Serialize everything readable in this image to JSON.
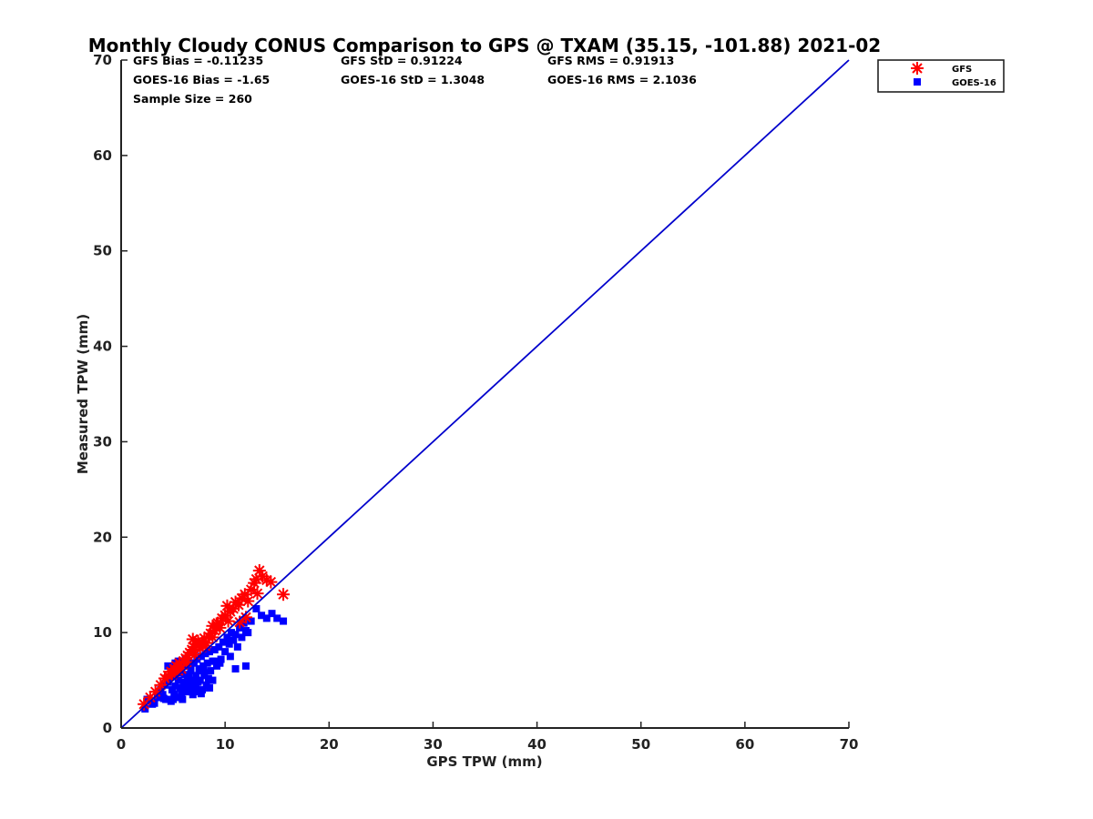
{
  "chart_data": {
    "type": "scatter",
    "title": "Monthly Cloudy CONUS Comparison to GPS @ TXAM (35.15, -101.88) 2021-02",
    "xlabel": "GPS TPW (mm)",
    "ylabel": "Measured TPW (mm)",
    "xlim": [
      0,
      70
    ],
    "ylim": [
      0,
      70
    ],
    "xticks": [
      "0",
      "10",
      "20",
      "30",
      "40",
      "50",
      "60",
      "70"
    ],
    "yticks": [
      "0",
      "10",
      "20",
      "30",
      "40",
      "50",
      "60",
      "70"
    ],
    "grid": false,
    "legend_position": "top-right",
    "stats": {
      "gfs_bias": "GFS Bias = -0.11235",
      "gfs_std": "GFS StD = 0.91224",
      "gfs_rms": "GFS RMS = 0.91913",
      "goes_bias": "GOES-16 Bias = -1.65",
      "goes_std": "GOES-16 StD = 1.3048",
      "goes_rms": "GOES-16 RMS = 2.1036",
      "sample_size": "Sample Size = 260"
    },
    "reference_line": {
      "x": [
        0,
        70
      ],
      "y": [
        0,
        70
      ],
      "color": "#0000cc"
    },
    "series": [
      {
        "name": "GFS",
        "marker": "asterisk",
        "color": "#ff0000",
        "x": [
          2.2,
          2.8,
          3.3,
          3.8,
          4.2,
          4.5,
          4.8,
          5.1,
          5.3,
          5.6,
          5.8,
          6.0,
          6.2,
          6.4,
          6.6,
          6.8,
          7.0,
          7.2,
          7.4,
          7.6,
          7.8,
          8.0,
          8.2,
          8.4,
          8.6,
          8.8,
          9.0,
          9.2,
          9.5,
          9.7,
          10.0,
          10.2,
          10.5,
          10.8,
          11.0,
          11.3,
          11.6,
          11.9,
          12.2,
          12.5,
          12.8,
          13.0,
          13.3,
          13.6,
          14.0,
          14.4,
          15.6,
          6.9,
          7.5,
          8.8,
          9.3,
          10.3,
          11.4,
          12.0,
          13.1,
          4.9,
          5.5,
          6.3,
          7.1,
          8.1
        ],
        "y": [
          2.5,
          3.2,
          3.8,
          4.5,
          5.2,
          5.5,
          5.9,
          6.2,
          6.5,
          6.8,
          6.2,
          7.0,
          7.3,
          7.6,
          7.9,
          8.2,
          8.5,
          8.8,
          9.1,
          8.4,
          9.0,
          9.4,
          8.9,
          9.6,
          9.9,
          9.5,
          10.2,
          10.8,
          10.5,
          11.5,
          11.8,
          12.8,
          12.2,
          12.5,
          13.2,
          12.9,
          13.6,
          14.0,
          13.3,
          14.5,
          15.2,
          15.6,
          16.5,
          15.9,
          15.5,
          15.3,
          14.0,
          9.3,
          8.7,
          10.7,
          11.0,
          11.2,
          11.1,
          11.6,
          14.1,
          5.6,
          6.0,
          6.9,
          7.7,
          8.6
        ]
      },
      {
        "name": "GOES-16",
        "marker": "square",
        "color": "#0000ff",
        "x": [
          2.3,
          2.5,
          3.0,
          3.5,
          3.8,
          4.0,
          4.2,
          4.3,
          4.5,
          4.6,
          4.8,
          4.9,
          5.0,
          5.1,
          5.2,
          5.3,
          5.4,
          5.5,
          5.6,
          5.7,
          5.8,
          5.9,
          6.0,
          6.1,
          6.2,
          6.3,
          6.4,
          6.5,
          6.6,
          6.7,
          6.8,
          6.9,
          7.0,
          7.1,
          7.2,
          7.3,
          7.4,
          7.5,
          7.6,
          7.7,
          7.8,
          7.9,
          8.0,
          8.1,
          8.2,
          8.3,
          8.4,
          8.5,
          8.6,
          8.8,
          9.0,
          9.2,
          9.4,
          9.6,
          9.8,
          10.0,
          10.2,
          10.4,
          10.6,
          10.8,
          11.0,
          11.2,
          11.4,
          11.6,
          11.8,
          12.0,
          12.2,
          12.5,
          13.0,
          13.5,
          14.0,
          14.5,
          15.0,
          15.6,
          11.0,
          12.0,
          10.5,
          9.0,
          8.0,
          7.0,
          6.0,
          5.0,
          4.5,
          5.5,
          6.5,
          7.5,
          8.5,
          9.5,
          4.8,
          5.8,
          6.8,
          7.8,
          8.8,
          5.2,
          6.2,
          7.2,
          3.2,
          4.1,
          6.7,
          7.7
        ],
        "y": [
          2.0,
          3.0,
          2.5,
          3.2,
          4.0,
          3.5,
          4.5,
          3.0,
          4.8,
          5.2,
          2.8,
          4.0,
          5.5,
          3.6,
          4.4,
          6.0,
          3.2,
          5.0,
          5.8,
          4.2,
          6.2,
          3.0,
          4.8,
          5.6,
          6.5,
          3.8,
          5.2,
          7.0,
          4.5,
          6.0,
          5.0,
          3.5,
          6.8,
          4.2,
          5.5,
          7.2,
          4.8,
          6.2,
          5.0,
          7.5,
          4.0,
          6.5,
          5.8,
          7.8,
          4.5,
          6.8,
          5.2,
          8.0,
          6.0,
          7.0,
          8.2,
          6.5,
          8.5,
          7.2,
          9.0,
          8.0,
          9.5,
          8.8,
          10.0,
          9.2,
          9.8,
          8.5,
          10.5,
          9.5,
          11.0,
          10.2,
          10.0,
          11.2,
          12.5,
          11.8,
          11.5,
          12.0,
          11.5,
          11.2,
          6.2,
          6.5,
          7.5,
          7.0,
          5.5,
          4.0,
          4.5,
          3.0,
          6.5,
          7.0,
          5.5,
          3.8,
          4.2,
          6.8,
          6.0,
          3.5,
          3.8,
          6.0,
          5.0,
          6.8,
          7.2,
          4.5,
          2.6,
          3.1,
          6.3,
          3.6
        ]
      }
    ]
  }
}
